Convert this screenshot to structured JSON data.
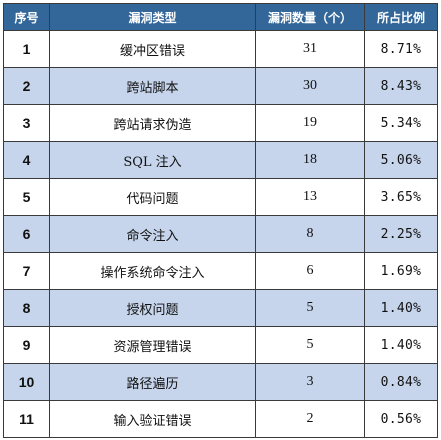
{
  "table": {
    "headers": {
      "no": "序号",
      "type": "漏洞类型",
      "count": "漏洞数量（个）",
      "percent": "所占比例"
    },
    "rows": [
      {
        "no": "1",
        "type": "缓冲区错误",
        "count": "31",
        "percent": "8.71%"
      },
      {
        "no": "2",
        "type": "跨站脚本",
        "count": "30",
        "percent": "8.43%"
      },
      {
        "no": "3",
        "type": "跨站请求伪造",
        "count": "19",
        "percent": "5.34%"
      },
      {
        "no": "4",
        "type": "SQL 注入",
        "count": "18",
        "percent": "5.06%"
      },
      {
        "no": "5",
        "type": "代码问题",
        "count": "13",
        "percent": "3.65%"
      },
      {
        "no": "6",
        "type": "命令注入",
        "count": "8",
        "percent": "2.25%"
      },
      {
        "no": "7",
        "type": "操作系统命令注入",
        "count": "6",
        "percent": "1.69%"
      },
      {
        "no": "8",
        "type": "授权问题",
        "count": "5",
        "percent": "1.40%"
      },
      {
        "no": "9",
        "type": "资源管理错误",
        "count": "5",
        "percent": "1.40%"
      },
      {
        "no": "10",
        "type": "路径遍历",
        "count": "3",
        "percent": "0.84%"
      },
      {
        "no": "11",
        "type": "输入验证错误",
        "count": "2",
        "percent": "0.56%"
      }
    ]
  },
  "colors": {
    "header_bg": "#336699",
    "header_text": "#ffffff",
    "alt_row_bg": "#c6d5ec",
    "border": "#3a3a3a"
  }
}
